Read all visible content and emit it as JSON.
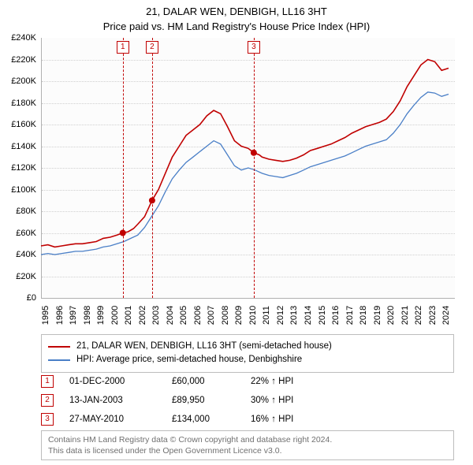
{
  "title_line1": "21, DALAR WEN, DENBIGH, LL16 3HT",
  "title_line2": "Price paid vs. HM Land Registry's House Price Index (HPI)",
  "chart": {
    "type": "line",
    "background_color": "#fcfcfc",
    "grid_color": "#d0d0d0",
    "axis_color": "#b0b0b0",
    "shade_color": "#eaf1fb",
    "x_years_start": 1995,
    "x_years_end": 2024,
    "x_ticks": [
      "1995",
      "1996",
      "1997",
      "1998",
      "1999",
      "2000",
      "2001",
      "2002",
      "2003",
      "2004",
      "2005",
      "2006",
      "2007",
      "2008",
      "2009",
      "2010",
      "2011",
      "2012",
      "2013",
      "2014",
      "2015",
      "2016",
      "2017",
      "2018",
      "2019",
      "2020",
      "2021",
      "2022",
      "2023",
      "2024"
    ],
    "ylim": [
      0,
      240000
    ],
    "y_ticks": [
      "£0",
      "£20K",
      "£40K",
      "£60K",
      "£80K",
      "£100K",
      "£120K",
      "£140K",
      "£160K",
      "£180K",
      "£200K",
      "£220K",
      "£240K"
    ],
    "label_fontsize": 11,
    "series": [
      {
        "name": "21, DALAR WEN, DENBIGH, LL16 3HT (semi-detached house)",
        "color": "#c00000",
        "width": 1.6,
        "data": [
          [
            1995.0,
            48000
          ],
          [
            1995.5,
            49000
          ],
          [
            1996.0,
            47000
          ],
          [
            1996.5,
            48000
          ],
          [
            1997.0,
            49000
          ],
          [
            1997.5,
            50000
          ],
          [
            1998.0,
            50000
          ],
          [
            1998.5,
            51000
          ],
          [
            1999.0,
            52000
          ],
          [
            1999.5,
            55000
          ],
          [
            2000.0,
            56000
          ],
          [
            2000.5,
            58000
          ],
          [
            2000.92,
            60000
          ],
          [
            2001.3,
            61000
          ],
          [
            2001.7,
            64000
          ],
          [
            2002.0,
            68000
          ],
          [
            2002.5,
            75000
          ],
          [
            2003.04,
            89950
          ],
          [
            2003.5,
            100000
          ],
          [
            2004.0,
            115000
          ],
          [
            2004.5,
            130000
          ],
          [
            2005.0,
            140000
          ],
          [
            2005.5,
            150000
          ],
          [
            2006.0,
            155000
          ],
          [
            2006.5,
            160000
          ],
          [
            2007.0,
            168000
          ],
          [
            2007.5,
            173000
          ],
          [
            2008.0,
            170000
          ],
          [
            2008.5,
            158000
          ],
          [
            2009.0,
            145000
          ],
          [
            2009.5,
            140000
          ],
          [
            2010.0,
            138000
          ],
          [
            2010.4,
            134000
          ],
          [
            2010.8,
            132000
          ],
          [
            2011.0,
            130000
          ],
          [
            2011.5,
            128000
          ],
          [
            2012.0,
            127000
          ],
          [
            2012.5,
            126000
          ],
          [
            2013.0,
            127000
          ],
          [
            2013.5,
            129000
          ],
          [
            2014.0,
            132000
          ],
          [
            2014.5,
            136000
          ],
          [
            2015.0,
            138000
          ],
          [
            2015.5,
            140000
          ],
          [
            2016.0,
            142000
          ],
          [
            2016.5,
            145000
          ],
          [
            2017.0,
            148000
          ],
          [
            2017.5,
            152000
          ],
          [
            2018.0,
            155000
          ],
          [
            2018.5,
            158000
          ],
          [
            2019.0,
            160000
          ],
          [
            2019.5,
            162000
          ],
          [
            2020.0,
            165000
          ],
          [
            2020.5,
            172000
          ],
          [
            2021.0,
            182000
          ],
          [
            2021.5,
            195000
          ],
          [
            2022.0,
            205000
          ],
          [
            2022.5,
            215000
          ],
          [
            2023.0,
            220000
          ],
          [
            2023.5,
            218000
          ],
          [
            2024.0,
            210000
          ],
          [
            2024.5,
            212000
          ]
        ]
      },
      {
        "name": "HPI: Average price, semi-detached house, Denbighshire",
        "color": "#4a7fc7",
        "width": 1.3,
        "data": [
          [
            1995.0,
            40000
          ],
          [
            1995.5,
            41000
          ],
          [
            1996.0,
            40000
          ],
          [
            1996.5,
            41000
          ],
          [
            1997.0,
            42000
          ],
          [
            1997.5,
            43000
          ],
          [
            1998.0,
            43000
          ],
          [
            1998.5,
            44000
          ],
          [
            1999.0,
            45000
          ],
          [
            1999.5,
            47000
          ],
          [
            2000.0,
            48000
          ],
          [
            2000.5,
            50000
          ],
          [
            2001.0,
            52000
          ],
          [
            2001.5,
            55000
          ],
          [
            2002.0,
            58000
          ],
          [
            2002.5,
            65000
          ],
          [
            2003.0,
            75000
          ],
          [
            2003.5,
            85000
          ],
          [
            2004.0,
            98000
          ],
          [
            2004.5,
            110000
          ],
          [
            2005.0,
            118000
          ],
          [
            2005.5,
            125000
          ],
          [
            2006.0,
            130000
          ],
          [
            2006.5,
            135000
          ],
          [
            2007.0,
            140000
          ],
          [
            2007.5,
            145000
          ],
          [
            2008.0,
            142000
          ],
          [
            2008.5,
            132000
          ],
          [
            2009.0,
            122000
          ],
          [
            2009.5,
            118000
          ],
          [
            2010.0,
            120000
          ],
          [
            2010.5,
            118000
          ],
          [
            2011.0,
            115000
          ],
          [
            2011.5,
            113000
          ],
          [
            2012.0,
            112000
          ],
          [
            2012.5,
            111000
          ],
          [
            2013.0,
            113000
          ],
          [
            2013.5,
            115000
          ],
          [
            2014.0,
            118000
          ],
          [
            2014.5,
            121000
          ],
          [
            2015.0,
            123000
          ],
          [
            2015.5,
            125000
          ],
          [
            2016.0,
            127000
          ],
          [
            2016.5,
            129000
          ],
          [
            2017.0,
            131000
          ],
          [
            2017.5,
            134000
          ],
          [
            2018.0,
            137000
          ],
          [
            2018.5,
            140000
          ],
          [
            2019.0,
            142000
          ],
          [
            2019.5,
            144000
          ],
          [
            2020.0,
            146000
          ],
          [
            2020.5,
            152000
          ],
          [
            2021.0,
            160000
          ],
          [
            2021.5,
            170000
          ],
          [
            2022.0,
            178000
          ],
          [
            2022.5,
            185000
          ],
          [
            2023.0,
            190000
          ],
          [
            2023.5,
            189000
          ],
          [
            2024.0,
            186000
          ],
          [
            2024.5,
            188000
          ]
        ]
      }
    ],
    "shaded_ranges": [
      [
        2000.92,
        2003.04
      ],
      [
        2010.4,
        2011.1
      ]
    ],
    "callouts": [
      {
        "n": "1",
        "year": 2000.92,
        "price": 60000
      },
      {
        "n": "2",
        "year": 2003.04,
        "price": 89950
      },
      {
        "n": "3",
        "year": 2010.4,
        "price": 134000
      }
    ]
  },
  "legend": {
    "items": [
      {
        "color": "#c00000",
        "label": "21, DALAR WEN, DENBIGH, LL16 3HT (semi-detached house)"
      },
      {
        "color": "#4a7fc7",
        "label": "HPI: Average price, semi-detached house, Denbighshire"
      }
    ]
  },
  "sales_rows": [
    {
      "n": "1",
      "date": "01-DEC-2000",
      "price": "£60,000",
      "delta": "22% ↑ HPI"
    },
    {
      "n": "2",
      "date": "13-JAN-2003",
      "price": "£89,950",
      "delta": "30% ↑ HPI"
    },
    {
      "n": "3",
      "date": "27-MAY-2010",
      "price": "£134,000",
      "delta": "16% ↑ HPI"
    }
  ],
  "footer_line1": "Contains HM Land Registry data © Crown copyright and database right 2024.",
  "footer_line2": "This data is licensed under the Open Government Licence v3.0."
}
